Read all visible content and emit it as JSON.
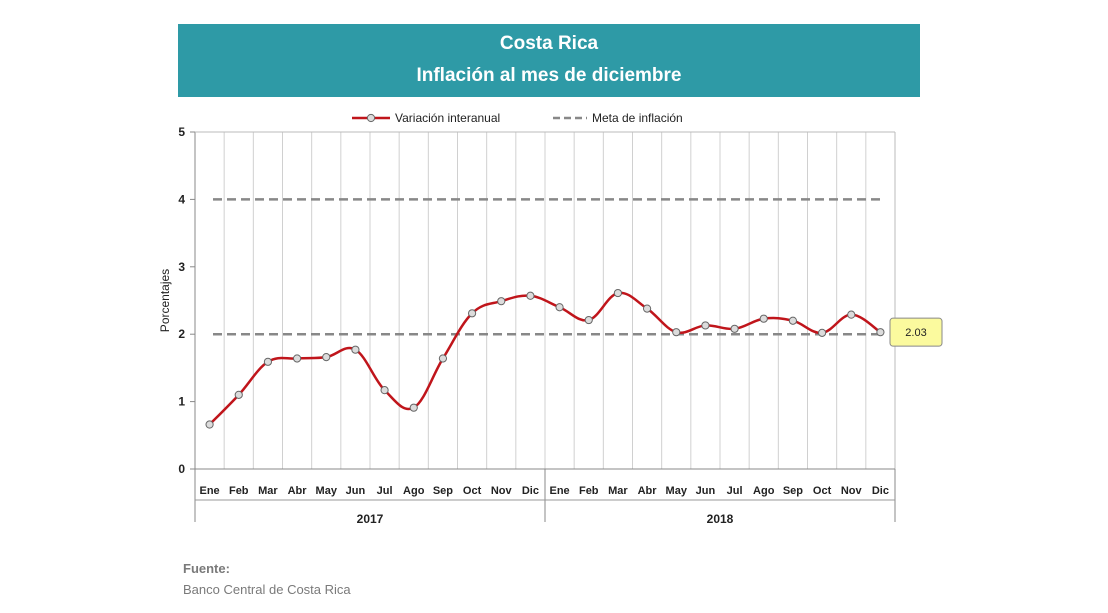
{
  "header": {
    "title_line1": "Costa Rica",
    "title_line2": "Inflación al mes de diciembre"
  },
  "chart_data": {
    "type": "line",
    "ylabel": "Porcentajes",
    "ylim": [
      0,
      5
    ],
    "yticks": [
      "0",
      "1",
      "2",
      "3",
      "4",
      "5"
    ],
    "grid": "vertical",
    "legend_position": "top",
    "categories": [
      "Ene",
      "Feb",
      "Mar",
      "Abr",
      "May",
      "Jun",
      "Jul",
      "Ago",
      "Sep",
      "Oct",
      "Nov",
      "Dic",
      "Ene",
      "Feb",
      "Mar",
      "Abr",
      "May",
      "Jun",
      "Jul",
      "Ago",
      "Sep",
      "Oct",
      "Nov",
      "Dic"
    ],
    "groups": [
      {
        "label": "2017",
        "count": 12
      },
      {
        "label": "2018",
        "count": 12
      }
    ],
    "series": [
      {
        "name": "Variación interanual",
        "color": "#c0151b",
        "values": [
          0.66,
          1.1,
          1.59,
          1.64,
          1.66,
          1.77,
          1.17,
          0.91,
          1.64,
          2.31,
          2.49,
          2.57,
          2.4,
          2.21,
          2.61,
          2.38,
          2.03,
          2.13,
          2.08,
          2.23,
          2.2,
          2.02,
          2.29,
          2.03
        ]
      }
    ],
    "reference_lines": [
      {
        "name": "Meta de inflación",
        "values": [
          2,
          4
        ],
        "color": "#888888",
        "style": "dashed"
      }
    ],
    "annotation": {
      "text": "2.03",
      "point_index": 23
    }
  },
  "source": {
    "label": "Fuente:",
    "text": "Banco Central de Costa Rica"
  }
}
